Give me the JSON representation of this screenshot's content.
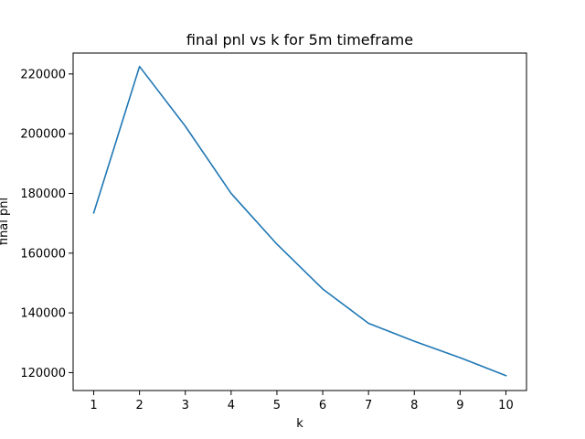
{
  "chart_data": {
    "type": "line",
    "title": "final pnl vs k for 5m timeframe",
    "xlabel": "k",
    "ylabel": "final pnl",
    "x": [
      1,
      2,
      3,
      4,
      5,
      6,
      7,
      8,
      9,
      10
    ],
    "series": [
      {
        "values": [
          173500,
          222500,
          202500,
          180000,
          163000,
          148000,
          136500,
          130500,
          125000,
          119000
        ],
        "color": "#1f77b4"
      }
    ],
    "xticks": [
      "1",
      "2",
      "3",
      "4",
      "5",
      "6",
      "7",
      "8",
      "9",
      "10"
    ],
    "yticks": [
      "120000",
      "140000",
      "160000",
      "180000",
      "200000",
      "220000"
    ],
    "xlim": [
      0.55,
      10.45
    ],
    "ylim": [
      114000,
      227000
    ],
    "grid": false,
    "legend": "none"
  }
}
